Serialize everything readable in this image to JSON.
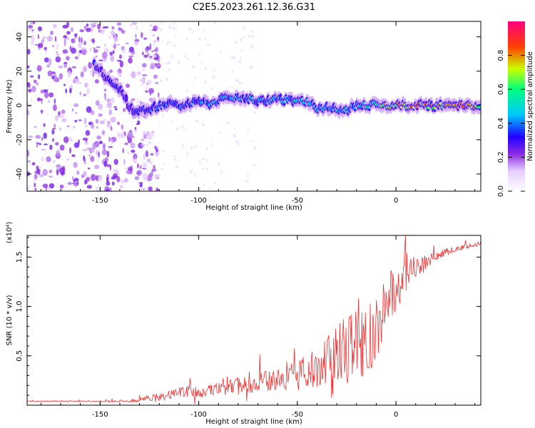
{
  "figure_title": "C2E5.2023.261.12.36.G31",
  "chart_data": [
    {
      "type": "heatmap",
      "title": "",
      "xlabel": "Height of straight line (km)",
      "ylabel": "Frequency (Hz)",
      "xlim": [
        -187,
        43
      ],
      "ylim": [
        -50,
        49
      ],
      "xticks": [
        -150,
        -100,
        -50,
        0
      ],
      "yticks": [
        -40,
        -20,
        0,
        20,
        40
      ],
      "colorbar": {
        "label": "Normalized spectral amplitude",
        "range": [
          0.0,
          1.0
        ],
        "ticks": [
          0.0,
          0.2,
          0.4,
          0.6,
          0.8
        ],
        "colormap": [
          "#ffffff",
          "#e6ccff",
          "#8a2be2",
          "#2200ff",
          "#00c8ff",
          "#00ff7f",
          "#c8ff00",
          "#ff4000",
          "#ff0080"
        ]
      },
      "ridge": {
        "x": [
          -153,
          -148,
          -143,
          -138,
          -135,
          -130,
          -125,
          -120,
          -115,
          -110,
          -105,
          -100,
          -95,
          -90,
          -85,
          -80,
          -75,
          -70,
          -65,
          -60,
          -55,
          -50,
          -45,
          -40,
          -35,
          -30,
          -25,
          -20,
          -15,
          -10,
          -5,
          0,
          5,
          10,
          15,
          20,
          25,
          30,
          35,
          40,
          43
        ],
        "y": [
          24,
          18,
          12,
          7,
          -2,
          -3,
          -2,
          0,
          1,
          0,
          1,
          2,
          1,
          3,
          4,
          5,
          4,
          2,
          3,
          4,
          3,
          2,
          3,
          -2,
          -1,
          -2,
          -3,
          0,
          0,
          1,
          0,
          0,
          0,
          0,
          0,
          0,
          0,
          0,
          0,
          0,
          0
        ],
        "amplitude": [
          0.35,
          0.3,
          0.3,
          0.3,
          0.3,
          0.35,
          0.35,
          0.4,
          0.4,
          0.4,
          0.4,
          0.4,
          0.45,
          0.45,
          0.45,
          0.45,
          0.45,
          0.45,
          0.45,
          0.45,
          0.5,
          0.5,
          0.5,
          0.45,
          0.45,
          0.45,
          0.5,
          0.5,
          0.55,
          0.6,
          0.75,
          0.8,
          0.85,
          0.85,
          0.85,
          0.85,
          0.85,
          0.85,
          0.85,
          0.85,
          0.85
        ]
      },
      "noise_region_x": [
        -187,
        -130
      ]
    },
    {
      "type": "line",
      "title": "",
      "xlabel": "Height of straight line (km)",
      "ylabel": "SNR (10 * v/v)",
      "y_multiplier": "(x10⁴)",
      "xlim": [
        -187,
        43
      ],
      "ylim": [
        0,
        1.72
      ],
      "xticks": [
        -150,
        -100,
        -50,
        0
      ],
      "yticks": [
        0.5,
        1.0,
        1.5
      ],
      "ytick_labels": [
        "0.5",
        "1.0",
        "1.5"
      ],
      "color": "#ee3333",
      "series": [
        {
          "x": [
            -187,
            -180,
            -170,
            -160,
            -150,
            -140,
            -130,
            -125,
            -120,
            -115,
            -110,
            -105,
            -100,
            -95,
            -90,
            -85,
            -80,
            -75,
            -70,
            -65,
            -60,
            -55,
            -50,
            -45,
            -40,
            -37,
            -35,
            -30,
            -25,
            -20,
            -15,
            -12,
            -10,
            -7,
            -5,
            -2,
            0,
            5,
            10,
            15,
            20,
            25,
            30,
            35,
            40,
            43
          ],
          "y": [
            0.04,
            0.04,
            0.04,
            0.04,
            0.04,
            0.04,
            0.05,
            0.08,
            0.08,
            0.1,
            0.12,
            0.14,
            0.12,
            0.15,
            0.16,
            0.18,
            0.2,
            0.22,
            0.22,
            0.25,
            0.25,
            0.28,
            0.3,
            0.35,
            0.38,
            0.4,
            0.55,
            0.55,
            0.6,
            0.6,
            0.65,
            0.7,
            0.8,
            0.95,
            1.1,
            1.15,
            1.15,
            1.3,
            1.4,
            1.45,
            1.5,
            1.55,
            1.58,
            1.6,
            1.63,
            1.65
          ],
          "spread": [
            0.01,
            0.01,
            0.01,
            0.01,
            0.01,
            0.02,
            0.03,
            0.06,
            0.06,
            0.08,
            0.1,
            0.1,
            0.1,
            0.12,
            0.12,
            0.12,
            0.15,
            0.15,
            0.18,
            0.18,
            0.2,
            0.22,
            0.25,
            0.3,
            0.35,
            0.4,
            0.5,
            0.5,
            0.55,
            0.6,
            0.6,
            0.6,
            0.6,
            0.5,
            0.45,
            0.4,
            0.35,
            0.3,
            0.25,
            0.15,
            0.08,
            0.06,
            0.05,
            0.04,
            0.04,
            0.03
          ]
        }
      ]
    }
  ]
}
